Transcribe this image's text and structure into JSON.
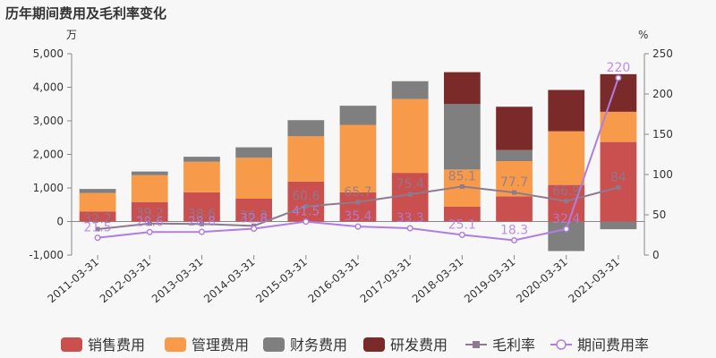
{
  "chart_data": {
    "type": "bar",
    "title": "历年期间费用及毛利率变化",
    "left_unit": "万",
    "right_unit": "%",
    "categories": [
      "2011-03-31",
      "2012-03-31",
      "2013-03-31",
      "2014-03-31",
      "2015-03-31",
      "2016-03-31",
      "2017-03-31",
      "2018-03-31",
      "2019-03-31",
      "2020-03-31",
      "2021-03-31"
    ],
    "left_axis": {
      "min": -1000,
      "max": 5000,
      "ticks": [
        -1000,
        0,
        1000,
        2000,
        3000,
        4000,
        5000
      ],
      "tick_labels": [
        "-1,000",
        "0",
        "1,000",
        "2,000",
        "3,000",
        "4,000",
        "5,000"
      ]
    },
    "right_axis": {
      "min": 0,
      "max": 250,
      "ticks": [
        0,
        50,
        100,
        150,
        200,
        250
      ],
      "tick_labels": [
        "0",
        "50",
        "100",
        "150",
        "200",
        "250"
      ]
    },
    "stacked": true,
    "series": [
      {
        "name": "销售费用",
        "color": "#c9504f",
        "values": [
          300,
          580,
          870,
          680,
          1190,
          870,
          1450,
          440,
          750,
          1090,
          2370
        ]
      },
      {
        "name": "管理费用",
        "color": "#f79a4a",
        "values": [
          550,
          800,
          910,
          1220,
          1350,
          2010,
          2200,
          1110,
          1050,
          1600,
          900
        ]
      },
      {
        "name": "财务费用",
        "color": "#7f7f7f",
        "values": [
          120,
          110,
          150,
          310,
          480,
          570,
          530,
          1950,
          330,
          -880,
          -230
        ]
      },
      {
        "name": "研发费用",
        "color": "#7b2a2a",
        "values": [
          0,
          0,
          0,
          0,
          0,
          0,
          0,
          950,
          1290,
          1230,
          1120
        ]
      }
    ],
    "lines": [
      {
        "name": "毛利率",
        "color": "#8c7b8f",
        "axis": "right",
        "values": [
          32.2,
          39.2,
          38.6,
          36.3,
          60.6,
          65.7,
          75.4,
          85.1,
          77.7,
          66.9,
          84
        ],
        "labels": [
          "32.2",
          "39.2",
          "38.6",
          "36.3",
          "60.6",
          "65.7",
          "75.4",
          "85.1",
          "77.7",
          "66.9",
          "84"
        ]
      },
      {
        "name": "期间费用率",
        "color": "#b07ee0",
        "axis": "right",
        "values": [
          21.5,
          28.6,
          28.8,
          32.8,
          41.5,
          35.4,
          33.3,
          25.1,
          18.3,
          32.4,
          220
        ],
        "labels": [
          "21.5",
          "28.6",
          "28.8",
          "32.8",
          "41.5",
          "35.4",
          "33.3",
          "25.1",
          "18.3",
          "32.4",
          "220"
        ]
      }
    ],
    "legend_position": "bottom",
    "grid": false
  }
}
